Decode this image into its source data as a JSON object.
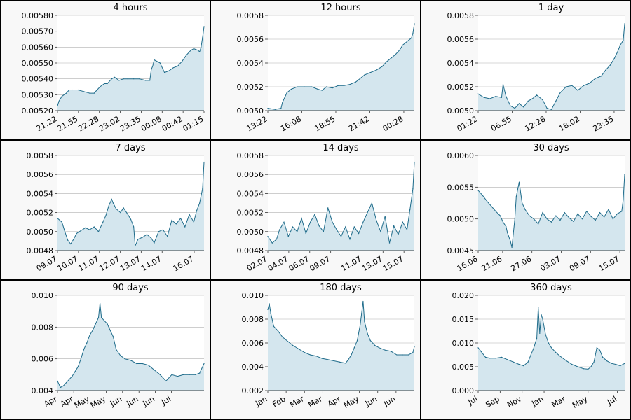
{
  "style": {
    "line_color": "#1e6b8a",
    "fill_color": "#d4e6ee",
    "grid_color": "#b0b0b0",
    "panel_bg": "#f8f8f8",
    "plot_bg": "#ffffff",
    "border_color": "#000000"
  },
  "chart_data": [
    {
      "type": "area",
      "title": "4 hours",
      "ylim": [
        0.0052,
        0.0058
      ],
      "yticks": [
        "0.00520",
        "0.00530",
        "0.00540",
        "0.00550",
        "0.00560",
        "0.00570",
        "0.00580"
      ],
      "yticks_values": [
        0.0052,
        0.0053,
        0.0054,
        0.0055,
        0.0056,
        0.0057,
        0.0058
      ],
      "xticks": [
        "21:22",
        "21:55",
        "22:28",
        "23:02",
        "23:35",
        "00:08",
        "00:42",
        "01:15"
      ],
      "xticks_pos": [
        0.0,
        0.158,
        0.316,
        0.474,
        0.632,
        0.79,
        0.948,
        1.106
      ],
      "x": [
        0,
        0.01,
        0.03,
        0.06,
        0.08,
        0.1,
        0.14,
        0.18,
        0.22,
        0.25,
        0.27,
        0.29,
        0.32,
        0.34,
        0.37,
        0.39,
        0.42,
        0.45,
        0.48,
        0.52,
        0.56,
        0.6,
        0.63,
        0.64,
        0.65,
        0.66,
        0.7,
        0.72,
        0.73,
        0.76,
        0.79,
        0.82,
        0.85,
        0.88,
        0.91,
        0.93,
        0.96,
        0.97,
        0.98,
        0.99,
        1.0
      ],
      "y": [
        0.00523,
        0.00526,
        0.00529,
        0.00531,
        0.00533,
        0.00533,
        0.00533,
        0.00532,
        0.00531,
        0.00531,
        0.00533,
        0.00535,
        0.00537,
        0.00537,
        0.0054,
        0.00541,
        0.00539,
        0.0054,
        0.0054,
        0.0054,
        0.0054,
        0.00539,
        0.00539,
        0.00546,
        0.00548,
        0.00552,
        0.0055,
        0.00546,
        0.00544,
        0.00545,
        0.00547,
        0.00548,
        0.00551,
        0.00555,
        0.00558,
        0.00559,
        0.00558,
        0.00557,
        0.0056,
        0.00566,
        0.00573
      ]
    },
    {
      "type": "area",
      "title": "12 hours",
      "ylim": [
        0.005,
        0.0058
      ],
      "yticks": [
        "0.0050",
        "0.0052",
        "0.0054",
        "0.0056",
        "0.0058"
      ],
      "yticks_values": [
        0.005,
        0.0052,
        0.0054,
        0.0056,
        0.0058
      ],
      "xticks": [
        "13:22",
        "16:08",
        "18:55",
        "21:42",
        "00:28"
      ],
      "xticks_pos": [
        0.0,
        0.232,
        0.464,
        0.696,
        0.928
      ],
      "x": [
        0,
        0.05,
        0.09,
        0.1,
        0.13,
        0.16,
        0.2,
        0.25,
        0.3,
        0.34,
        0.37,
        0.4,
        0.44,
        0.48,
        0.52,
        0.56,
        0.6,
        0.63,
        0.66,
        0.7,
        0.74,
        0.78,
        0.81,
        0.84,
        0.87,
        0.9,
        0.92,
        0.95,
        0.97,
        0.98,
        0.99,
        1.0
      ],
      "y": [
        0.00502,
        0.00501,
        0.00502,
        0.00507,
        0.00515,
        0.00518,
        0.0052,
        0.0052,
        0.0052,
        0.00518,
        0.00517,
        0.0052,
        0.00519,
        0.00521,
        0.00521,
        0.00522,
        0.00524,
        0.00527,
        0.0053,
        0.00532,
        0.00534,
        0.00537,
        0.00541,
        0.00544,
        0.00547,
        0.00551,
        0.00555,
        0.00558,
        0.0056,
        0.00561,
        0.00565,
        0.00573
      ]
    },
    {
      "type": "area",
      "title": "1 day",
      "ylim": [
        0.005,
        0.0058
      ],
      "yticks": [
        "0.0050",
        "0.0052",
        "0.0054",
        "0.0056",
        "0.0058"
      ],
      "yticks_values": [
        0.005,
        0.0052,
        0.0054,
        0.0056,
        0.0058
      ],
      "xticks": [
        "01:22",
        "06:55",
        "12:28",
        "18:02",
        "23:35"
      ],
      "xticks_pos": [
        0.0,
        0.232,
        0.464,
        0.696,
        0.928
      ],
      "x": [
        0,
        0.04,
        0.08,
        0.12,
        0.16,
        0.17,
        0.19,
        0.22,
        0.25,
        0.28,
        0.31,
        0.34,
        0.37,
        0.4,
        0.44,
        0.47,
        0.5,
        0.53,
        0.56,
        0.6,
        0.64,
        0.68,
        0.72,
        0.76,
        0.8,
        0.84,
        0.87,
        0.9,
        0.93,
        0.95,
        0.97,
        0.99,
        1.0
      ],
      "y": [
        0.00514,
        0.00511,
        0.0051,
        0.00512,
        0.00511,
        0.00522,
        0.00512,
        0.00504,
        0.00502,
        0.00506,
        0.00503,
        0.00508,
        0.0051,
        0.00513,
        0.00509,
        0.00502,
        0.00501,
        0.00508,
        0.00515,
        0.0052,
        0.00521,
        0.00517,
        0.00521,
        0.00523,
        0.00527,
        0.00529,
        0.00534,
        0.00538,
        0.00544,
        0.00549,
        0.00555,
        0.00559,
        0.00573
      ]
    },
    {
      "type": "area",
      "title": "7 days",
      "ylim": [
        0.0048,
        0.0058
      ],
      "yticks": [
        "0.0048",
        "0.0050",
        "0.0052",
        "0.0054",
        "0.0056",
        "0.0058"
      ],
      "yticks_values": [
        0.0048,
        0.005,
        0.0052,
        0.0054,
        0.0056,
        0.0058
      ],
      "xticks": [
        "09.07",
        "10.07",
        "11.07",
        "12.07",
        "13.07",
        "14.07",
        "16.07"
      ],
      "xticks_pos": [
        0.0,
        0.143,
        0.286,
        0.429,
        0.571,
        0.714,
        0.933
      ],
      "x": [
        0,
        0.03,
        0.05,
        0.07,
        0.09,
        0.11,
        0.13,
        0.16,
        0.19,
        0.22,
        0.25,
        0.28,
        0.31,
        0.33,
        0.35,
        0.37,
        0.38,
        0.4,
        0.43,
        0.45,
        0.48,
        0.5,
        0.52,
        0.53,
        0.55,
        0.58,
        0.61,
        0.64,
        0.66,
        0.69,
        0.72,
        0.75,
        0.78,
        0.81,
        0.84,
        0.87,
        0.9,
        0.93,
        0.95,
        0.97,
        0.99,
        1.0
      ],
      "y": [
        0.00514,
        0.0051,
        0.005,
        0.00491,
        0.00487,
        0.00492,
        0.00498,
        0.00501,
        0.00504,
        0.00502,
        0.00505,
        0.005,
        0.0051,
        0.00517,
        0.00527,
        0.00534,
        0.0053,
        0.00524,
        0.0052,
        0.00525,
        0.00518,
        0.00513,
        0.00505,
        0.00485,
        0.00492,
        0.00494,
        0.00497,
        0.00493,
        0.00488,
        0.005,
        0.00502,
        0.00495,
        0.00512,
        0.00508,
        0.00514,
        0.00505,
        0.00518,
        0.0051,
        0.00522,
        0.0053,
        0.00545,
        0.00573
      ]
    },
    {
      "type": "area",
      "title": "14 days",
      "ylim": [
        0.0048,
        0.0058
      ],
      "yticks": [
        "0.0048",
        "0.0050",
        "0.0052",
        "0.0054",
        "0.0056",
        "0.0058"
      ],
      "yticks_values": [
        0.0048,
        0.005,
        0.0052,
        0.0054,
        0.0056,
        0.0058
      ],
      "xticks": [
        "02.07",
        "04.07",
        "06.07",
        "09.07",
        "11.07",
        "13.07",
        "15.07"
      ],
      "xticks_pos": [
        0.0,
        0.143,
        0.286,
        0.429,
        0.643,
        0.786,
        0.929
      ],
      "x": [
        0,
        0.03,
        0.06,
        0.08,
        0.11,
        0.14,
        0.17,
        0.2,
        0.23,
        0.26,
        0.29,
        0.32,
        0.35,
        0.38,
        0.41,
        0.44,
        0.47,
        0.5,
        0.53,
        0.56,
        0.59,
        0.62,
        0.65,
        0.68,
        0.71,
        0.74,
        0.77,
        0.8,
        0.83,
        0.86,
        0.89,
        0.92,
        0.95,
        0.97,
        0.99,
        1.0
      ],
      "y": [
        0.00495,
        0.00488,
        0.00492,
        0.00502,
        0.0051,
        0.00495,
        0.00505,
        0.005,
        0.00514,
        0.00498,
        0.0051,
        0.00518,
        0.00506,
        0.005,
        0.00525,
        0.0051,
        0.00502,
        0.00495,
        0.00505,
        0.00492,
        0.00505,
        0.00498,
        0.0051,
        0.0052,
        0.0053,
        0.00512,
        0.005,
        0.00516,
        0.00488,
        0.00506,
        0.00497,
        0.0051,
        0.00502,
        0.00523,
        0.00545,
        0.00573
      ]
    },
    {
      "type": "area",
      "title": "30 days",
      "ylim": [
        0.0045,
        0.006
      ],
      "yticks": [
        "0.0045",
        "0.0050",
        "0.0055",
        "0.0060"
      ],
      "yticks_values": [
        0.0045,
        0.005,
        0.0055,
        0.006
      ],
      "xticks": [
        "16.06",
        "21.06",
        "27.06",
        "03.07",
        "09.07",
        "15.07"
      ],
      "xticks_pos": [
        0.0,
        0.167,
        0.367,
        0.567,
        0.767,
        0.967
      ],
      "x": [
        0,
        0.03,
        0.06,
        0.09,
        0.12,
        0.15,
        0.17,
        0.19,
        0.2,
        0.22,
        0.23,
        0.25,
        0.26,
        0.28,
        0.3,
        0.32,
        0.35,
        0.38,
        0.41,
        0.44,
        0.47,
        0.5,
        0.53,
        0.56,
        0.59,
        0.62,
        0.65,
        0.68,
        0.71,
        0.74,
        0.77,
        0.8,
        0.83,
        0.86,
        0.89,
        0.92,
        0.95,
        0.98,
        0.99,
        1.0
      ],
      "y": [
        0.00545,
        0.00537,
        0.00528,
        0.0052,
        0.00512,
        0.00505,
        0.00495,
        0.00488,
        0.00478,
        0.00465,
        0.00455,
        0.005,
        0.00535,
        0.00558,
        0.00525,
        0.00515,
        0.00505,
        0.005,
        0.00492,
        0.0051,
        0.005,
        0.00495,
        0.00505,
        0.00498,
        0.0051,
        0.00502,
        0.00496,
        0.00508,
        0.005,
        0.00512,
        0.00504,
        0.00498,
        0.0051,
        0.00503,
        0.00515,
        0.005,
        0.00508,
        0.00512,
        0.0053,
        0.0057
      ]
    },
    {
      "type": "area",
      "title": "90 days",
      "ylim": [
        0.004,
        0.01
      ],
      "yticks": [
        "0.004",
        "0.006",
        "0.008",
        "0.010"
      ],
      "yticks_values": [
        0.004,
        0.006,
        0.008,
        0.01
      ],
      "xticks": [
        "Apr",
        "Apr",
        "May",
        "May",
        "Jun",
        "Jun",
        "Jun",
        "Jul"
      ],
      "xticks_pos": [
        0.0,
        0.111,
        0.222,
        0.333,
        0.444,
        0.556,
        0.667,
        0.778
      ],
      "x": [
        0,
        0.02,
        0.04,
        0.06,
        0.08,
        0.1,
        0.12,
        0.14,
        0.16,
        0.18,
        0.2,
        0.22,
        0.24,
        0.26,
        0.28,
        0.29,
        0.3,
        0.32,
        0.34,
        0.36,
        0.38,
        0.4,
        0.43,
        0.46,
        0.5,
        0.54,
        0.58,
        0.62,
        0.66,
        0.7,
        0.74,
        0.78,
        0.82,
        0.86,
        0.9,
        0.94,
        0.97,
        1.0
      ],
      "y": [
        0.0046,
        0.0042,
        0.0043,
        0.0045,
        0.0047,
        0.0049,
        0.0052,
        0.0055,
        0.006,
        0.0066,
        0.007,
        0.0075,
        0.0078,
        0.0082,
        0.0086,
        0.0095,
        0.0086,
        0.0084,
        0.0082,
        0.0078,
        0.0074,
        0.0066,
        0.0062,
        0.006,
        0.0059,
        0.0057,
        0.0057,
        0.0056,
        0.0053,
        0.005,
        0.0046,
        0.005,
        0.0049,
        0.005,
        0.005,
        0.005,
        0.0051,
        0.0057
      ]
    },
    {
      "type": "area",
      "title": "180 days",
      "ylim": [
        0.002,
        0.01
      ],
      "yticks": [
        "0.002",
        "0.004",
        "0.006",
        "0.008",
        "0.010"
      ],
      "yticks_values": [
        0.002,
        0.004,
        0.006,
        0.008,
        0.01
      ],
      "xticks": [
        "Jan",
        "Feb",
        "Mar",
        "Mar",
        "Apr",
        "May",
        "Jun",
        "Jun"
      ],
      "xticks_pos": [
        0.0,
        0.125,
        0.25,
        0.375,
        0.5,
        0.625,
        0.75,
        0.875
      ],
      "x": [
        0,
        0.01,
        0.02,
        0.04,
        0.07,
        0.1,
        0.13,
        0.17,
        0.21,
        0.25,
        0.29,
        0.33,
        0.37,
        0.41,
        0.45,
        0.49,
        0.53,
        0.55,
        0.57,
        0.59,
        0.61,
        0.63,
        0.64,
        0.65,
        0.66,
        0.68,
        0.7,
        0.73,
        0.76,
        0.8,
        0.84,
        0.88,
        0.92,
        0.96,
        0.99,
        1.0
      ],
      "y": [
        0.0088,
        0.0093,
        0.0085,
        0.0074,
        0.007,
        0.0065,
        0.0062,
        0.0058,
        0.0055,
        0.0052,
        0.005,
        0.0049,
        0.0047,
        0.0046,
        0.0045,
        0.0044,
        0.0043,
        0.0046,
        0.005,
        0.0056,
        0.0062,
        0.0075,
        0.0085,
        0.0095,
        0.0078,
        0.0068,
        0.0062,
        0.0058,
        0.0056,
        0.0054,
        0.0053,
        0.005,
        0.005,
        0.005,
        0.0052,
        0.0057
      ]
    },
    {
      "type": "area",
      "title": "360 days",
      "ylim": [
        0.0,
        0.02
      ],
      "yticks": [
        "0.000",
        "0.005",
        "0.010",
        "0.015",
        "0.020"
      ],
      "yticks_values": [
        0.0,
        0.005,
        0.01,
        0.015,
        0.02
      ],
      "xticks": [
        "Jul",
        "Sep",
        "Nov",
        "Jan",
        "Mar",
        "May",
        "Jul"
      ],
      "xticks_pos": [
        0.0,
        0.15,
        0.3,
        0.45,
        0.6,
        0.75,
        0.95
      ],
      "x": [
        0,
        0.02,
        0.05,
        0.08,
        0.12,
        0.16,
        0.2,
        0.24,
        0.28,
        0.31,
        0.34,
        0.36,
        0.38,
        0.4,
        0.41,
        0.42,
        0.43,
        0.44,
        0.46,
        0.48,
        0.5,
        0.53,
        0.56,
        0.6,
        0.64,
        0.68,
        0.72,
        0.75,
        0.77,
        0.79,
        0.81,
        0.83,
        0.85,
        0.88,
        0.91,
        0.94,
        0.97,
        1.0
      ],
      "y": [
        0.009,
        0.0082,
        0.007,
        0.0068,
        0.0068,
        0.007,
        0.0065,
        0.006,
        0.0055,
        0.0052,
        0.006,
        0.0075,
        0.009,
        0.011,
        0.0175,
        0.012,
        0.016,
        0.015,
        0.0118,
        0.01,
        0.009,
        0.008,
        0.0072,
        0.0063,
        0.0055,
        0.005,
        0.0046,
        0.0045,
        0.005,
        0.006,
        0.009,
        0.0085,
        0.007,
        0.0062,
        0.0057,
        0.0055,
        0.0052,
        0.0057
      ]
    }
  ]
}
